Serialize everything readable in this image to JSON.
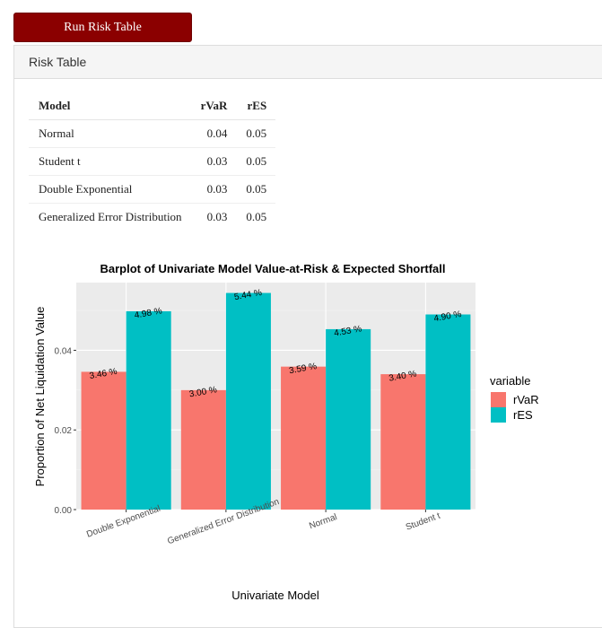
{
  "run_button": {
    "label": "Run Risk Table"
  },
  "panel": {
    "title": "Risk Table"
  },
  "table": {
    "columns": [
      "Model",
      "rVaR",
      "rES"
    ],
    "rows": [
      [
        "Normal",
        "0.04",
        "0.05"
      ],
      [
        "Student t",
        "0.03",
        "0.05"
      ],
      [
        "Double Exponential",
        "0.03",
        "0.05"
      ],
      [
        "Generalized Error Distribution",
        "0.03",
        "0.05"
      ]
    ]
  },
  "chart_data": {
    "type": "bar",
    "title": "Barplot of Univariate Model Value-at-Risk & Expected Shortfall",
    "xlabel": "Univariate Model",
    "ylabel": "Proportion of Net Liquidation Value",
    "categories": [
      "Double Exponential",
      "Generalized Error Distribution",
      "Normal",
      "Student t"
    ],
    "series": [
      {
        "name": "rVaR",
        "color": "#f8766d",
        "values": [
          0.0346,
          0.03,
          0.0359,
          0.034
        ],
        "labels": [
          "3.46 %",
          "3.00 %",
          "3.59 %",
          "3.40 %"
        ]
      },
      {
        "name": "rES",
        "color": "#00bfc4",
        "values": [
          0.0498,
          0.0544,
          0.0453,
          0.049
        ],
        "labels": [
          "4.98 %",
          "5.44 %",
          "4.53 %",
          "4.90 %"
        ]
      }
    ],
    "yticks": [
      "0.00",
      "0.02",
      "0.04"
    ],
    "ytick_values": [
      0,
      0.02,
      0.04
    ],
    "ylim": [
      0,
      0.057
    ],
    "legend": {
      "title": "variable",
      "position": "right"
    },
    "grid": true,
    "panel_background": "#ebebeb"
  }
}
